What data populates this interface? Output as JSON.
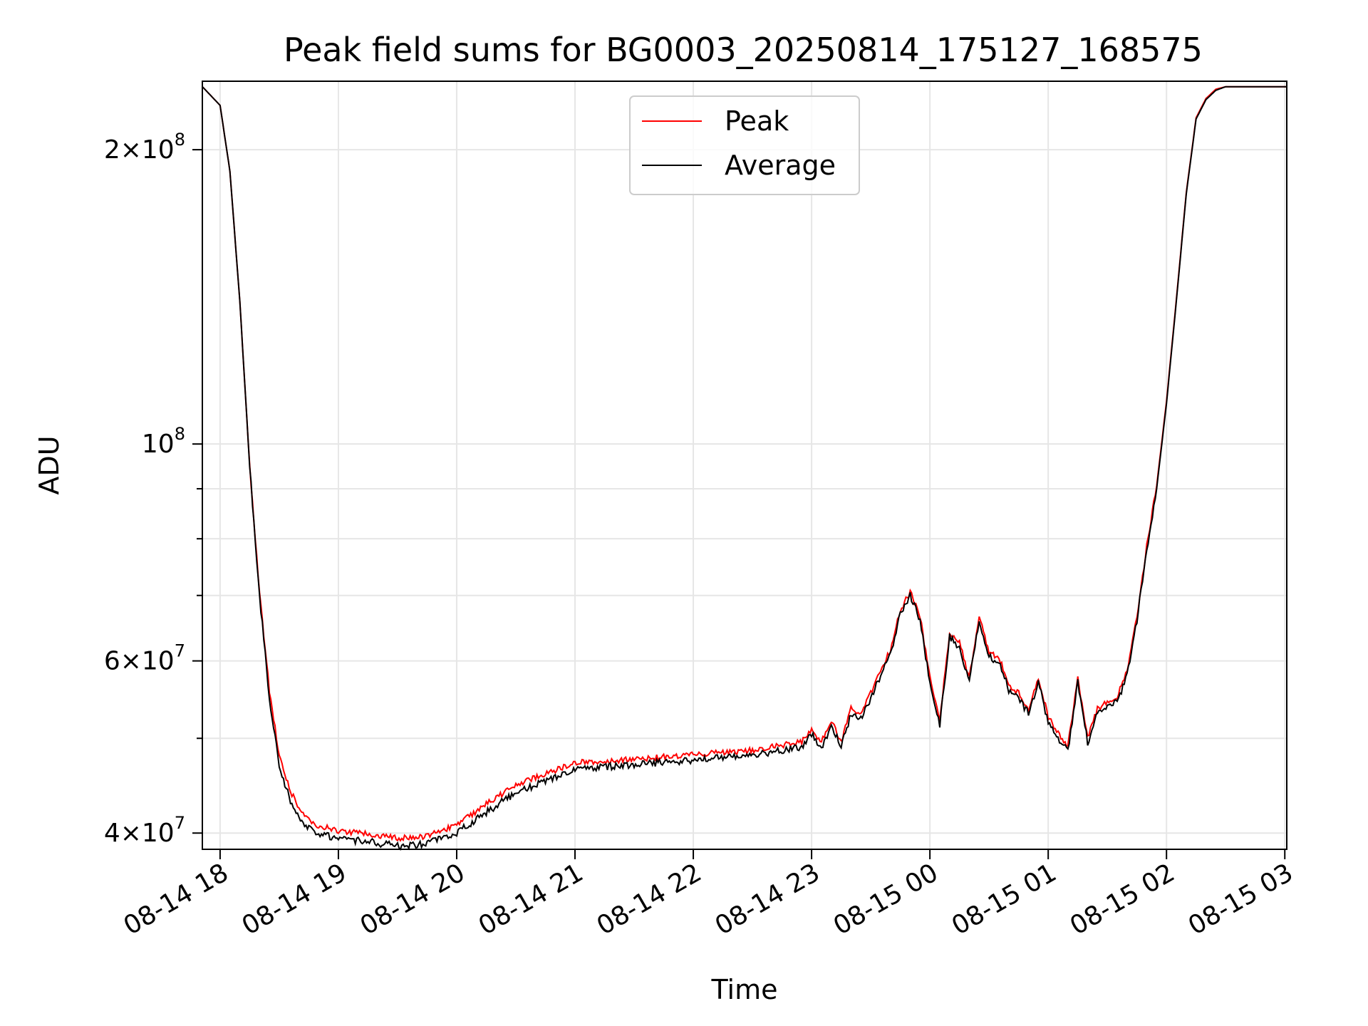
{
  "chart_data": {
    "type": "line",
    "title": "Peak field sums for BG0003_20250814_175127_168575",
    "xlabel": "Time",
    "ylabel": "ADU",
    "yscale": "log",
    "ylim": [
      38500000,
      235000000
    ],
    "xlim": [
      "2025-08-14 17:51",
      "2025-08-15 03:01"
    ],
    "x_ticks": [
      "08-14 18",
      "08-14 19",
      "08-14 20",
      "08-14 21",
      "08-14 22",
      "08-14 23",
      "08-15 00",
      "08-15 01",
      "08-15 02",
      "08-15 03"
    ],
    "y_ticks": [
      {
        "value": 40000000,
        "mantissa": "4",
        "exponent": "7"
      },
      {
        "value": 60000000,
        "mantissa": "6",
        "exponent": "7"
      },
      {
        "value": 100000000,
        "mantissa": "",
        "exponent": "8"
      },
      {
        "value": 200000000,
        "mantissa": "2",
        "exponent": "8"
      }
    ],
    "grid": true,
    "legend_position": "upper-center",
    "series": [
      {
        "name": "Peak",
        "color": "#ff0000"
      },
      {
        "name": "Average",
        "color": "#000000"
      }
    ],
    "x": [
      "2025-08-14 17:51",
      "2025-08-14 18:00",
      "2025-08-14 18:05",
      "2025-08-14 18:10",
      "2025-08-14 18:15",
      "2025-08-14 18:20",
      "2025-08-14 18:25",
      "2025-08-14 18:30",
      "2025-08-14 18:35",
      "2025-08-14 18:40",
      "2025-08-14 18:45",
      "2025-08-14 18:50",
      "2025-08-14 19:00",
      "2025-08-14 19:15",
      "2025-08-14 19:30",
      "2025-08-14 19:45",
      "2025-08-14 20:00",
      "2025-08-14 20:15",
      "2025-08-14 20:30",
      "2025-08-14 21:00",
      "2025-08-14 21:30",
      "2025-08-14 22:00",
      "2025-08-14 22:30",
      "2025-08-14 22:55",
      "2025-08-14 23:00",
      "2025-08-14 23:05",
      "2025-08-14 23:10",
      "2025-08-14 23:15",
      "2025-08-14 23:20",
      "2025-08-14 23:25",
      "2025-08-14 23:30",
      "2025-08-14 23:35",
      "2025-08-14 23:40",
      "2025-08-14 23:45",
      "2025-08-14 23:50",
      "2025-08-14 23:55",
      "2025-08-15 00:00",
      "2025-08-15 00:05",
      "2025-08-15 00:10",
      "2025-08-15 00:15",
      "2025-08-15 00:20",
      "2025-08-15 00:25",
      "2025-08-15 00:30",
      "2025-08-15 00:35",
      "2025-08-15 00:40",
      "2025-08-15 00:45",
      "2025-08-15 00:50",
      "2025-08-15 00:55",
      "2025-08-15 01:00",
      "2025-08-15 01:05",
      "2025-08-15 01:10",
      "2025-08-15 01:15",
      "2025-08-15 01:20",
      "2025-08-15 01:25",
      "2025-08-15 01:30",
      "2025-08-15 01:35",
      "2025-08-15 01:40",
      "2025-08-15 01:45",
      "2025-08-15 01:50",
      "2025-08-15 01:55",
      "2025-08-15 02:00",
      "2025-08-15 02:05",
      "2025-08-15 02:10",
      "2025-08-15 02:15",
      "2025-08-15 02:20",
      "2025-08-15 02:25",
      "2025-08-15 02:30",
      "2025-08-15 02:35",
      "2025-08-15 02:40",
      "2025-08-15 02:45",
      "2025-08-15 02:50",
      "2025-08-15 02:55",
      "2025-08-15 03:01"
    ],
    "values_average": [
      232000000,
      222000000,
      190000000,
      140000000,
      95000000,
      70000000,
      55000000,
      47000000,
      43500000,
      41500000,
      40500000,
      40000000,
      39500000,
      39200000,
      38800000,
      39000000,
      40000000,
      42000000,
      44000000,
      46500000,
      47000000,
      47500000,
      48000000,
      49000000,
      50500000,
      49000000,
      51500000,
      49000000,
      53000000,
      52500000,
      55000000,
      58000000,
      61000000,
      67000000,
      70000000,
      66000000,
      57000000,
      51500000,
      63500000,
      62000000,
      57000000,
      66000000,
      60500000,
      60000000,
      56000000,
      55000000,
      53000000,
      57000000,
      52000000,
      50000000,
      48500000,
      57000000,
      49500000,
      53000000,
      54000000,
      54500000,
      58000000,
      66000000,
      78000000,
      90000000,
      110000000,
      140000000,
      180000000,
      215000000,
      225000000,
      230000000,
      232000000,
      232000000,
      232000000,
      232000000,
      232000000,
      232000000,
      232000000
    ],
    "values_peak": [
      232000000,
      222000000,
      190000000,
      140000000,
      95000000,
      70500000,
      56000000,
      48000000,
      44500000,
      42300000,
      41200000,
      40700000,
      40200000,
      39900000,
      39500000,
      39700000,
      40800000,
      42800000,
      44800000,
      47200000,
      47600000,
      48100000,
      48600000,
      49600000,
      51100000,
      49600000,
      52100000,
      49600000,
      53600000,
      53100000,
      55600000,
      58600000,
      61600000,
      67600000,
      70600000,
      66600000,
      57600000,
      52100000,
      64100000,
      62600000,
      57600000,
      66600000,
      61100000,
      60600000,
      56600000,
      55600000,
      53600000,
      57600000,
      52600000,
      50600000,
      49100000,
      57600000,
      50100000,
      53600000,
      54600000,
      55100000,
      58600000,
      66600000,
      78600000,
      90600000,
      110600000,
      140600000,
      180600000,
      215600000,
      225600000,
      230600000,
      232000000,
      232000000,
      232000000,
      232000000,
      232000000,
      232000000,
      232000000
    ]
  }
}
